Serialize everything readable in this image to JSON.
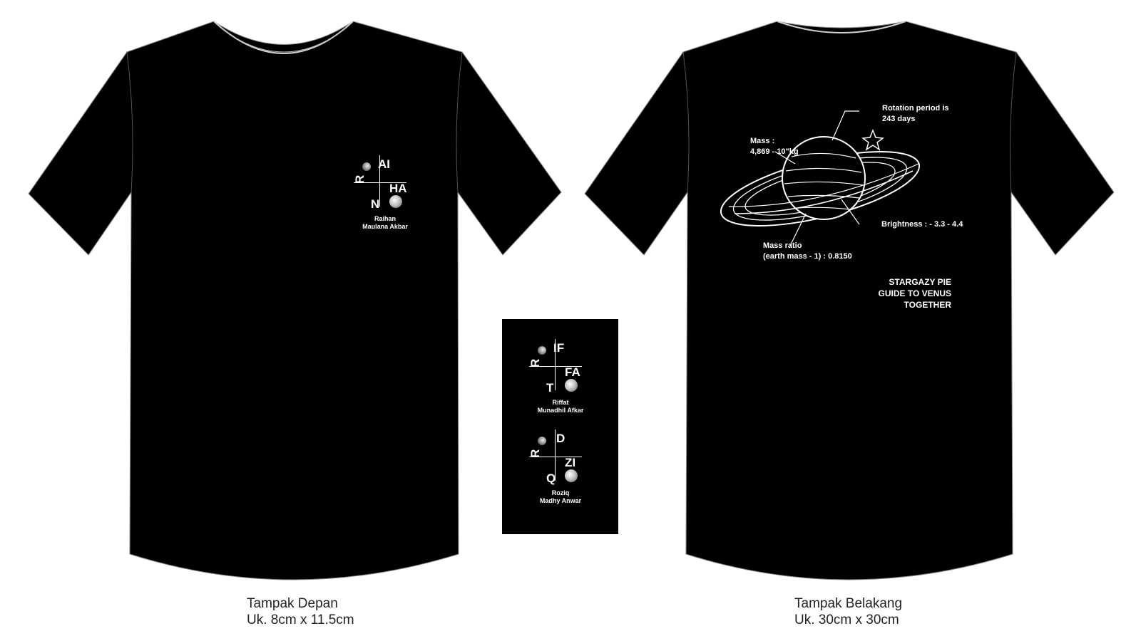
{
  "front": {
    "logo": {
      "letters": [
        "R",
        "AI",
        "HA",
        "N"
      ],
      "name_line1": "Raihan",
      "name_line2": "Maulana Akbar"
    },
    "caption_title": "Tampak Depan",
    "caption_size": "Uk. 8cm x 11.5cm"
  },
  "variants": [
    {
      "letters": [
        "R",
        "IF",
        "FA",
        "T"
      ],
      "name_line1": "Riffat",
      "name_line2": "Munadhil Afkar"
    },
    {
      "letters": [
        "R",
        "D",
        "ZI",
        "Q"
      ],
      "name_line1": "Roziq",
      "name_line2": "Madhy Anwar"
    }
  ],
  "back": {
    "annotations": {
      "rotation": "Rotation period is",
      "rotation_value": "243 days",
      "mass": "Mass :",
      "mass_value": "4,869 - 10\"kg",
      "brightness": "Brightness : - 3.3 - 4.4",
      "mass_ratio": "Mass ratio",
      "mass_ratio_value": "(earth mass - 1) : 0.8150"
    },
    "tagline": [
      "STARGAZY PIE",
      "GUIDE TO VENUS",
      "TOGETHER"
    ],
    "caption_title": "Tampak Belakang",
    "caption_size": "Uk. 30cm x 30cm"
  },
  "colors": {
    "shirt": "#000000",
    "print": "#ffffff",
    "caption": "#222222"
  }
}
